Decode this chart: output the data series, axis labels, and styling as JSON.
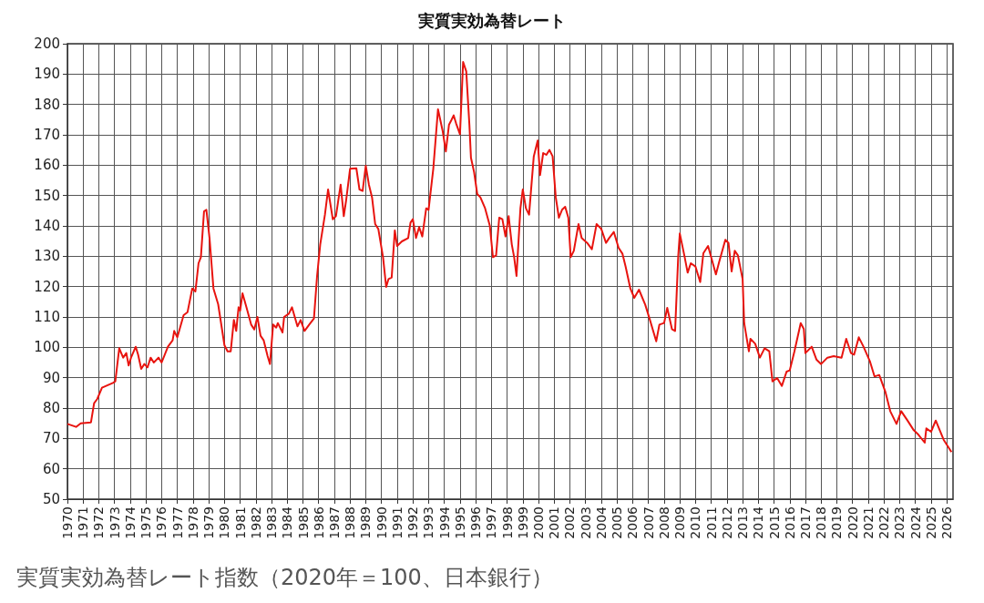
{
  "chart_data": {
    "type": "line",
    "title": "実質実効為替レート",
    "annotations": [
      "実質実効為替レート指数（2020年＝100、日本銀行）"
    ],
    "xlim": [
      1970,
      2026.4
    ],
    "xticks": [
      1970,
      1971,
      1972,
      1973,
      1974,
      1975,
      1976,
      1977,
      1978,
      1979,
      1980,
      1981,
      1982,
      1983,
      1984,
      1985,
      1986,
      1987,
      1988,
      1989,
      1990,
      1991,
      1992,
      1993,
      1994,
      1995,
      1996,
      1997,
      1998,
      1999,
      2000,
      2001,
      2002,
      2003,
      2004,
      2005,
      2006,
      2007,
      2008,
      2009,
      2010,
      2011,
      2012,
      2013,
      2014,
      2015,
      2016,
      2017,
      2018,
      2019,
      2020,
      2021,
      2022,
      2023,
      2024,
      2025,
      2026
    ],
    "ylim": [
      50,
      200
    ],
    "yticks": [
      50,
      60,
      70,
      80,
      90,
      100,
      110,
      120,
      130,
      140,
      150,
      160,
      170,
      180,
      190,
      200
    ],
    "grid": true,
    "marker": "none",
    "line_style": "solid",
    "series": [
      {
        "color": "#e8140f",
        "x": [
          1970.0,
          1970.55,
          1970.85,
          1971.5,
          1971.7,
          1971.9,
          1972.2,
          1972.9,
          1973.05,
          1973.3,
          1973.55,
          1973.75,
          1973.9,
          1974.05,
          1974.35,
          1974.5,
          1974.7,
          1974.9,
          1975.1,
          1975.3,
          1975.5,
          1975.8,
          1976.0,
          1976.4,
          1976.7,
          1976.8,
          1977.0,
          1977.4,
          1977.65,
          1977.95,
          1978.15,
          1978.35,
          1978.5,
          1978.7,
          1978.85,
          1979.05,
          1979.3,
          1979.6,
          1980.0,
          1980.2,
          1980.4,
          1980.6,
          1980.75,
          1980.9,
          1981.0,
          1981.15,
          1981.4,
          1981.7,
          1981.9,
          1982.1,
          1982.3,
          1982.5,
          1982.75,
          1982.9,
          1983.1,
          1983.3,
          1983.4,
          1983.7,
          1983.8,
          1984.1,
          1984.3,
          1984.65,
          1984.85,
          1985.1,
          1985.4,
          1985.7,
          1985.9,
          1986.1,
          1986.4,
          1986.6,
          1986.9,
          1987.1,
          1987.4,
          1987.6,
          1987.75,
          1988.0,
          1988.4,
          1988.6,
          1988.8,
          1989.0,
          1989.2,
          1989.4,
          1989.6,
          1989.8,
          1990.1,
          1990.3,
          1990.45,
          1990.65,
          1990.85,
          1991.0,
          1991.3,
          1991.7,
          1991.85,
          1992.0,
          1992.2,
          1992.4,
          1992.6,
          1992.85,
          1993.0,
          1993.3,
          1993.6,
          1993.9,
          1994.1,
          1994.3,
          1994.45,
          1994.6,
          1994.75,
          1995.0,
          1995.2,
          1995.4,
          1995.6,
          1995.7,
          1995.9,
          1996.1,
          1996.3,
          1996.6,
          1996.9,
          1997.1,
          1997.3,
          1997.5,
          1997.7,
          1997.9,
          1998.1,
          1998.3,
          1998.45,
          1998.6,
          1998.85,
          1999.0,
          1999.2,
          1999.4,
          1999.7,
          1999.95,
          2000.1,
          2000.3,
          2000.5,
          2000.7,
          2000.9,
          2001.1,
          2001.3,
          2001.5,
          2001.7,
          2001.9,
          2002.05,
          2002.25,
          2002.55,
          2002.75,
          2003.1,
          2003.4,
          2003.7,
          2004.0,
          2004.3,
          2004.5,
          2004.8,
          2005.1,
          2005.35,
          2005.55,
          2005.85,
          2006.1,
          2006.4,
          2006.8,
          2007.1,
          2007.5,
          2007.7,
          2008.0,
          2008.2,
          2008.5,
          2008.7,
          2008.9,
          2009.0,
          2009.3,
          2009.5,
          2009.7,
          2010.0,
          2010.3,
          2010.5,
          2010.8,
          2011.3,
          2011.5,
          2011.9,
          2012.1,
          2012.3,
          2012.5,
          2012.7,
          2013.0,
          2013.1,
          2013.4,
          2013.5,
          2013.8,
          2014.1,
          2014.4,
          2014.7,
          2014.9,
          2015.2,
          2015.5,
          2015.8,
          2016.0,
          2016.3,
          2016.7,
          2016.9,
          2017.0,
          2017.4,
          2017.7,
          2018.0,
          2018.4,
          2018.8,
          2019.3,
          2019.6,
          2019.9,
          2020.1,
          2020.4,
          2020.7,
          2021.1,
          2021.4,
          2021.7,
          2022.1,
          2022.4,
          2022.8,
          2023.1,
          2023.5,
          2023.9,
          2024.2,
          2024.6,
          2024.7,
          2025.0,
          2025.3,
          2025.8,
          2026.3
        ],
        "values": [
          74.8,
          73.8,
          75,
          75.3,
          81.6,
          83,
          86.7,
          88.3,
          88.8,
          99.7,
          96.6,
          98.1,
          94,
          96.6,
          100.2,
          97.6,
          92.9,
          94.5,
          93.4,
          96.6,
          95,
          96.6,
          95,
          100.2,
          102.3,
          105.4,
          103.3,
          110.6,
          111.6,
          119.4,
          118.4,
          127.7,
          129.7,
          144.8,
          145.3,
          136,
          119.4,
          114.2,
          100.7,
          98.7,
          98.7,
          109,
          105.4,
          113.2,
          112.1,
          117.8,
          113.2,
          107.5,
          105.9,
          110,
          103.8,
          102.3,
          97.1,
          94.5,
          107.5,
          106.5,
          108,
          104.9,
          110,
          111.1,
          113.2,
          106.9,
          109,
          105.4,
          107.5,
          109.5,
          123.5,
          133.9,
          143.7,
          152,
          142.2,
          143.2,
          153.6,
          143.2,
          148.4,
          158.8,
          159,
          152,
          151.5,
          159.8,
          153.6,
          149.4,
          140.6,
          139,
          129.7,
          119.9,
          122.5,
          123,
          138.5,
          133.4,
          134.9,
          136,
          141.1,
          142.2,
          136,
          139.6,
          136.5,
          145.8,
          145.3,
          158.8,
          178.4,
          171.2,
          164.5,
          173.3,
          174.8,
          176.4,
          173.8,
          170.2,
          194,
          190.9,
          173.3,
          162.4,
          157.7,
          150.5,
          149.4,
          145.8,
          140.1,
          129.7,
          130.3,
          142.7,
          142.2,
          136.5,
          143.2,
          133.9,
          129.7,
          123.5,
          145.8,
          152,
          145.8,
          143.7,
          162.9,
          168.1,
          156.7,
          164,
          163.4,
          165,
          162.9,
          149.4,
          142.7,
          145.3,
          146.3,
          142.7,
          129.7,
          131.8,
          140.6,
          136,
          134.4,
          132.3,
          140.6,
          139,
          134.4,
          136,
          138,
          132.8,
          130.8,
          126.6,
          119.4,
          116.3,
          119,
          114,
          109,
          102,
          107.5,
          108,
          113,
          106,
          105.4,
          130,
          137.5,
          130,
          124.6,
          127.7,
          126.6,
          121.5,
          131,
          133.4,
          124,
          128,
          135.4,
          134.4,
          125,
          131.8,
          130.3,
          122.5,
          108,
          98.7,
          102.8,
          101.2,
          96.6,
          99.7,
          98.7,
          88.8,
          89.9,
          87.3,
          92,
          92.4,
          98.7,
          108,
          106,
          98.1,
          100.2,
          96,
          94.5,
          96.6,
          97.1,
          96.6,
          102.8,
          98.1,
          97.6,
          103.3,
          100.2,
          95.5,
          90.4,
          90.9,
          85.2,
          79,
          74.8,
          79,
          75.9,
          72.7,
          71.2,
          68.6,
          73.3,
          72.2,
          75.9,
          69.6,
          65.5
        ]
      }
    ]
  }
}
